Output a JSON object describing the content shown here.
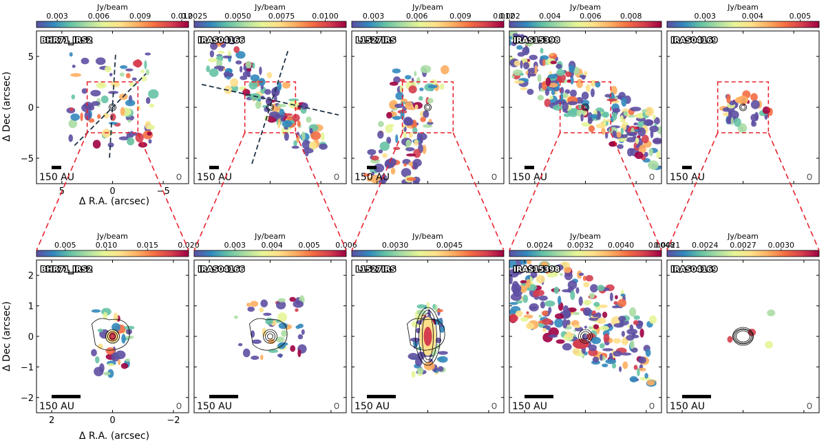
{
  "figure": {
    "colorbar_unit": "Jy/beam",
    "xlabel": "Δ R.A. (arcsec)",
    "ylabel": "Δ Dec (arcsec)",
    "scalebar_label": "150 AU"
  },
  "colors": {
    "zoom_box": "#e8222d",
    "outflow_axis": "#1c3145",
    "contour": "#000000",
    "colormap": [
      "#5e4fa2",
      "#3288bd",
      "#66c2a5",
      "#abdda4",
      "#e6f598",
      "#fee08b",
      "#fdae61",
      "#f46d43",
      "#d53e4f",
      "#9e0142"
    ]
  },
  "chart_data": [
    {
      "type": "heatmap",
      "row": "overview",
      "source": "BHR71_IRS2",
      "colorbar_ticks": [
        "0.003",
        "0.006",
        "0.009",
        "0.012"
      ],
      "colorbar_range": [
        0.0015,
        0.0125
      ],
      "xlim": [
        7.5,
        -7.5
      ],
      "ylim": [
        -7.5,
        7.5
      ],
      "xticks": [
        "5",
        "0",
        "−5"
      ],
      "yticks": [
        "5",
        "0",
        "−5"
      ],
      "zoom_box": [
        2.5,
        -2.5
      ],
      "outflow_axes": true
    },
    {
      "type": "heatmap",
      "row": "overview",
      "source": "IRAS04166",
      "colorbar_ticks": [
        "0.0025",
        "0.0050",
        "0.0075",
        "0.0100"
      ],
      "colorbar_range": [
        0.0025,
        0.0112
      ],
      "xlim": [
        7.5,
        -7.5
      ],
      "ylim": [
        -7.5,
        7.5
      ],
      "xticks": [],
      "yticks": [],
      "zoom_box": [
        2.5,
        -2.5
      ],
      "outflow_axes": true
    },
    {
      "type": "heatmap",
      "row": "overview",
      "source": "L1527IRS",
      "colorbar_ticks": [
        "0.003",
        "0.006",
        "0.009",
        "0.012"
      ],
      "colorbar_range": [
        0.0015,
        0.012
      ],
      "xlim": [
        7.5,
        -7.5
      ],
      "ylim": [
        -7.5,
        7.5
      ],
      "xticks": [],
      "yticks": [],
      "zoom_box": [
        2.5,
        -2.5
      ],
      "outflow_axes": false
    },
    {
      "type": "heatmap",
      "row": "overview",
      "source": "IRAS15398",
      "colorbar_ticks": [
        "0.002",
        "0.004",
        "0.006",
        "0.008"
      ],
      "colorbar_range": [
        0.002,
        0.0095
      ],
      "xlim": [
        7.5,
        -7.5
      ],
      "ylim": [
        -7.5,
        7.5
      ],
      "xticks": [],
      "yticks": [],
      "zoom_box": [
        2.5,
        -2.5
      ],
      "outflow_axes": false
    },
    {
      "type": "heatmap",
      "row": "overview",
      "source": "IRAS04169",
      "colorbar_ticks": [
        "0.003",
        "0.004",
        "0.005"
      ],
      "colorbar_range": [
        0.0022,
        0.0054
      ],
      "xlim": [
        7.5,
        -7.5
      ],
      "ylim": [
        -7.5,
        7.5
      ],
      "xticks": [],
      "yticks": [],
      "zoom_box": [
        2.5,
        -2.5
      ],
      "outflow_axes": false
    },
    {
      "type": "heatmap",
      "row": "zoom",
      "source": "BHR71_IRS2",
      "colorbar_ticks": [
        "0.005",
        "0.010",
        "0.015",
        "0.020"
      ],
      "colorbar_range": [
        0.0015,
        0.02
      ],
      "xlim": [
        2.5,
        -2.5
      ],
      "ylim": [
        -2.5,
        2.5
      ],
      "xticks": [
        "2",
        "0",
        "−2"
      ],
      "yticks": [
        "2",
        "1",
        "0",
        "−1",
        "−2"
      ]
    },
    {
      "type": "heatmap",
      "row": "zoom",
      "source": "IRAS04166",
      "colorbar_ticks": [
        "0.003",
        "0.004",
        "0.005",
        "0.006"
      ],
      "colorbar_range": [
        0.0019,
        0.006
      ],
      "xlim": [
        2.5,
        -2.5
      ],
      "ylim": [
        -2.5,
        2.5
      ],
      "xticks": [],
      "yticks": []
    },
    {
      "type": "heatmap",
      "row": "zoom",
      "source": "L1527IRS",
      "colorbar_ticks": [
        "0.0030",
        "0.0045"
      ],
      "colorbar_range": [
        0.0018,
        0.006
      ],
      "xlim": [
        2.5,
        -2.5
      ],
      "ylim": [
        -2.5,
        2.5
      ],
      "xticks": [],
      "yticks": []
    },
    {
      "type": "heatmap",
      "row": "zoom",
      "source": "IRAS15398",
      "colorbar_ticks": [
        "0.0024",
        "0.0032",
        "0.0040",
        "0.0048"
      ],
      "colorbar_range": [
        0.0018,
        0.0048
      ],
      "xlim": [
        2.5,
        -2.5
      ],
      "ylim": [
        -2.5,
        2.5
      ],
      "xticks": [],
      "yticks": []
    },
    {
      "type": "heatmap",
      "row": "zoom",
      "source": "IRAS04169",
      "colorbar_ticks": [
        "0.0021",
        "0.0024",
        "0.0027",
        "0.0030"
      ],
      "colorbar_range": [
        0.0021,
        0.0033
      ],
      "xlim": [
        2.5,
        -2.5
      ],
      "ylim": [
        -2.5,
        2.5
      ],
      "xticks": [],
      "yticks": []
    }
  ]
}
